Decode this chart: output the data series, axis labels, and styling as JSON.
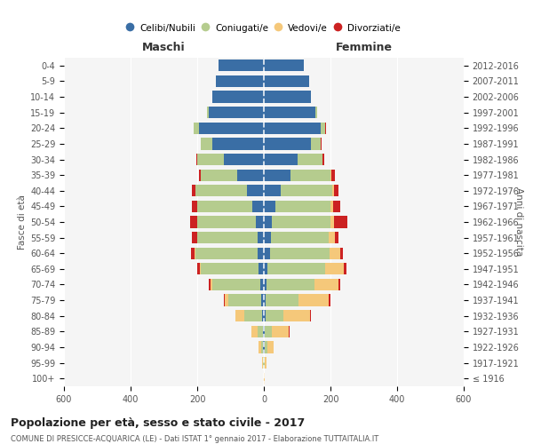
{
  "age_groups": [
    "100+",
    "95-99",
    "90-94",
    "85-89",
    "80-84",
    "75-79",
    "70-74",
    "65-69",
    "60-64",
    "55-59",
    "50-54",
    "45-49",
    "40-44",
    "35-39",
    "30-34",
    "25-29",
    "20-24",
    "15-19",
    "10-14",
    "5-9",
    "0-4"
  ],
  "birth_years": [
    "≤ 1916",
    "1917-1921",
    "1922-1926",
    "1927-1931",
    "1932-1936",
    "1937-1941",
    "1942-1946",
    "1947-1951",
    "1952-1956",
    "1957-1961",
    "1962-1966",
    "1967-1971",
    "1972-1976",
    "1977-1981",
    "1982-1986",
    "1987-1991",
    "1992-1996",
    "1997-2001",
    "2002-2006",
    "2007-2011",
    "2012-2016"
  ],
  "male": {
    "celibi": [
      1,
      1,
      2,
      3,
      5,
      8,
      10,
      15,
      20,
      20,
      25,
      35,
      50,
      80,
      120,
      155,
      195,
      165,
      155,
      145,
      135
    ],
    "coniugati": [
      0,
      2,
      5,
      15,
      55,
      100,
      145,
      175,
      185,
      180,
      175,
      165,
      155,
      110,
      80,
      35,
      15,
      5,
      0,
      0,
      0
    ],
    "vedovi": [
      0,
      2,
      8,
      20,
      25,
      10,
      5,
      3,
      2,
      1,
      1,
      0,
      0,
      0,
      0,
      0,
      0,
      0,
      0,
      0,
      0
    ],
    "divorziati": [
      0,
      0,
      0,
      0,
      1,
      2,
      5,
      8,
      12,
      15,
      20,
      15,
      10,
      5,
      3,
      0,
      0,
      0,
      0,
      0,
      0
    ]
  },
  "female": {
    "nubili": [
      1,
      1,
      2,
      3,
      4,
      5,
      8,
      10,
      18,
      20,
      25,
      35,
      50,
      80,
      100,
      140,
      170,
      155,
      140,
      135,
      120
    ],
    "coniugate": [
      0,
      2,
      8,
      22,
      55,
      100,
      145,
      175,
      180,
      175,
      175,
      165,
      155,
      120,
      75,
      30,
      15,
      5,
      0,
      0,
      0
    ],
    "vedove": [
      1,
      5,
      20,
      50,
      80,
      90,
      70,
      55,
      30,
      18,
      10,
      8,
      5,
      3,
      0,
      0,
      0,
      0,
      0,
      0,
      0
    ],
    "divorziate": [
      0,
      0,
      0,
      1,
      2,
      5,
      5,
      8,
      10,
      12,
      40,
      20,
      15,
      10,
      5,
      2,
      1,
      0,
      0,
      0,
      0
    ]
  },
  "colors": {
    "celibi": "#3a6ea5",
    "coniugati": "#b5cc8e",
    "vedovi": "#f5c87a",
    "divorziati": "#cc2222"
  },
  "xlim": 600,
  "title": "Popolazione per età, sesso e stato civile - 2017",
  "subtitle": "COMUNE DI PRESICCE-ACQUARICA (LE) - Dati ISTAT 1° gennaio 2017 - Elaborazione TUTTAITALIA.IT",
  "ylabel_left": "Fasce di età",
  "ylabel_right": "Anni di nascita",
  "legend_labels": [
    "Celibi/Nubili",
    "Coniugati/e",
    "Vedovi/e",
    "Divorziati/e"
  ],
  "maschi_label": "Maschi",
  "femmine_label": "Femmine",
  "background_color": "#f5f5f5"
}
